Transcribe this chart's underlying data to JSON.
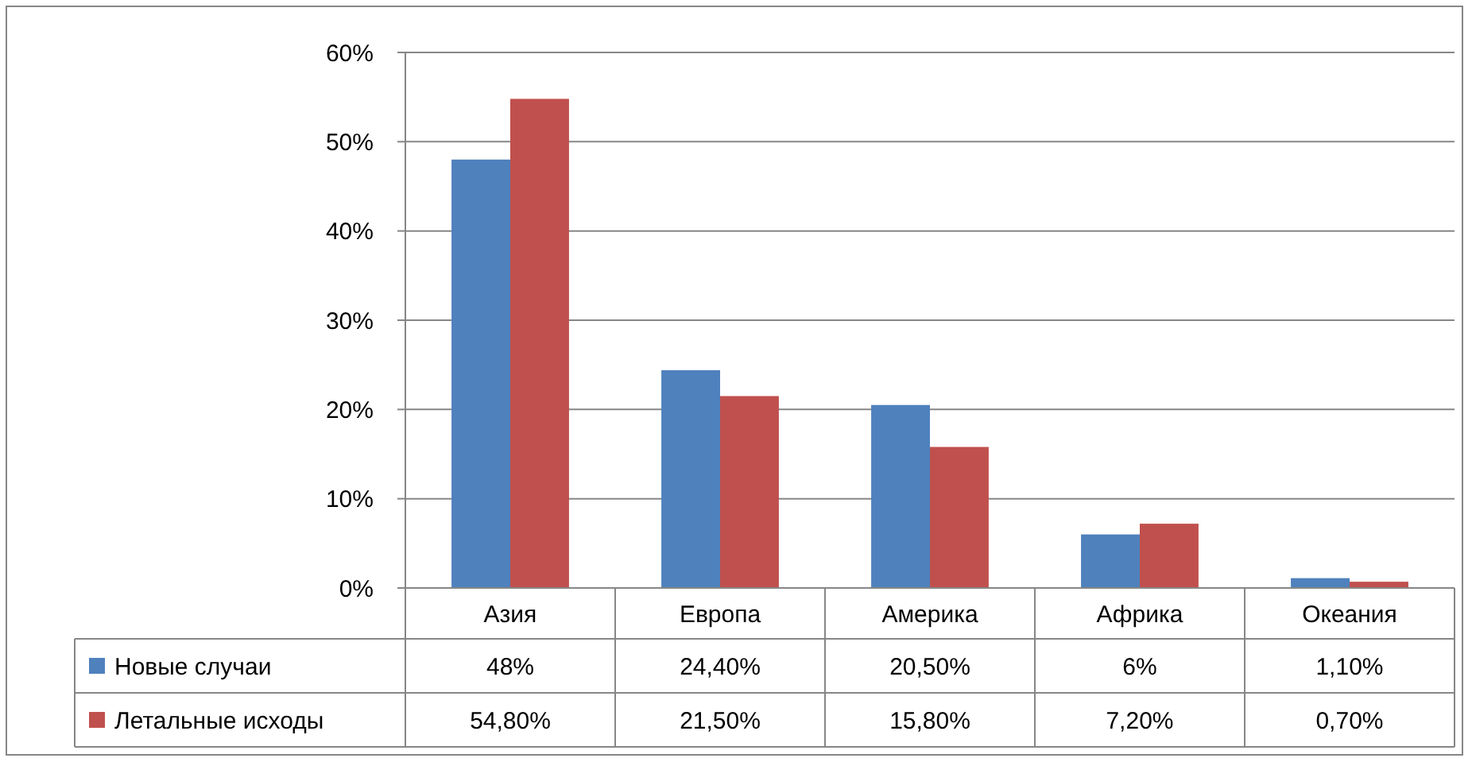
{
  "chart_data": {
    "type": "bar",
    "categories": [
      "Азия",
      "Европа",
      "Америка",
      "Африка",
      "Океания"
    ],
    "series": [
      {
        "name": "Новые случаи",
        "color": "#4f81bd",
        "values": [
          48,
          24.4,
          20.5,
          6,
          1.1
        ],
        "value_labels": [
          "48%",
          "24,40%",
          "20,50%",
          "6%",
          "1,10%"
        ]
      },
      {
        "name": "Летальные исходы",
        "color": "#c0504d",
        "values": [
          54.8,
          21.5,
          15.8,
          7.2,
          0.7
        ],
        "value_labels": [
          "54,80%",
          "21,50%",
          "15,80%",
          "7,20%",
          "0,70%"
        ]
      }
    ],
    "ylim": [
      0,
      60
    ],
    "yticks": [
      {
        "value": 0,
        "label": "0%"
      },
      {
        "value": 10,
        "label": "10%"
      },
      {
        "value": 20,
        "label": "20%"
      },
      {
        "value": 30,
        "label": "30%"
      },
      {
        "value": 40,
        "label": "40%"
      },
      {
        "value": 50,
        "label": "50%"
      },
      {
        "value": 60,
        "label": "60%"
      }
    ],
    "grid": "y",
    "legend": "bottom"
  }
}
